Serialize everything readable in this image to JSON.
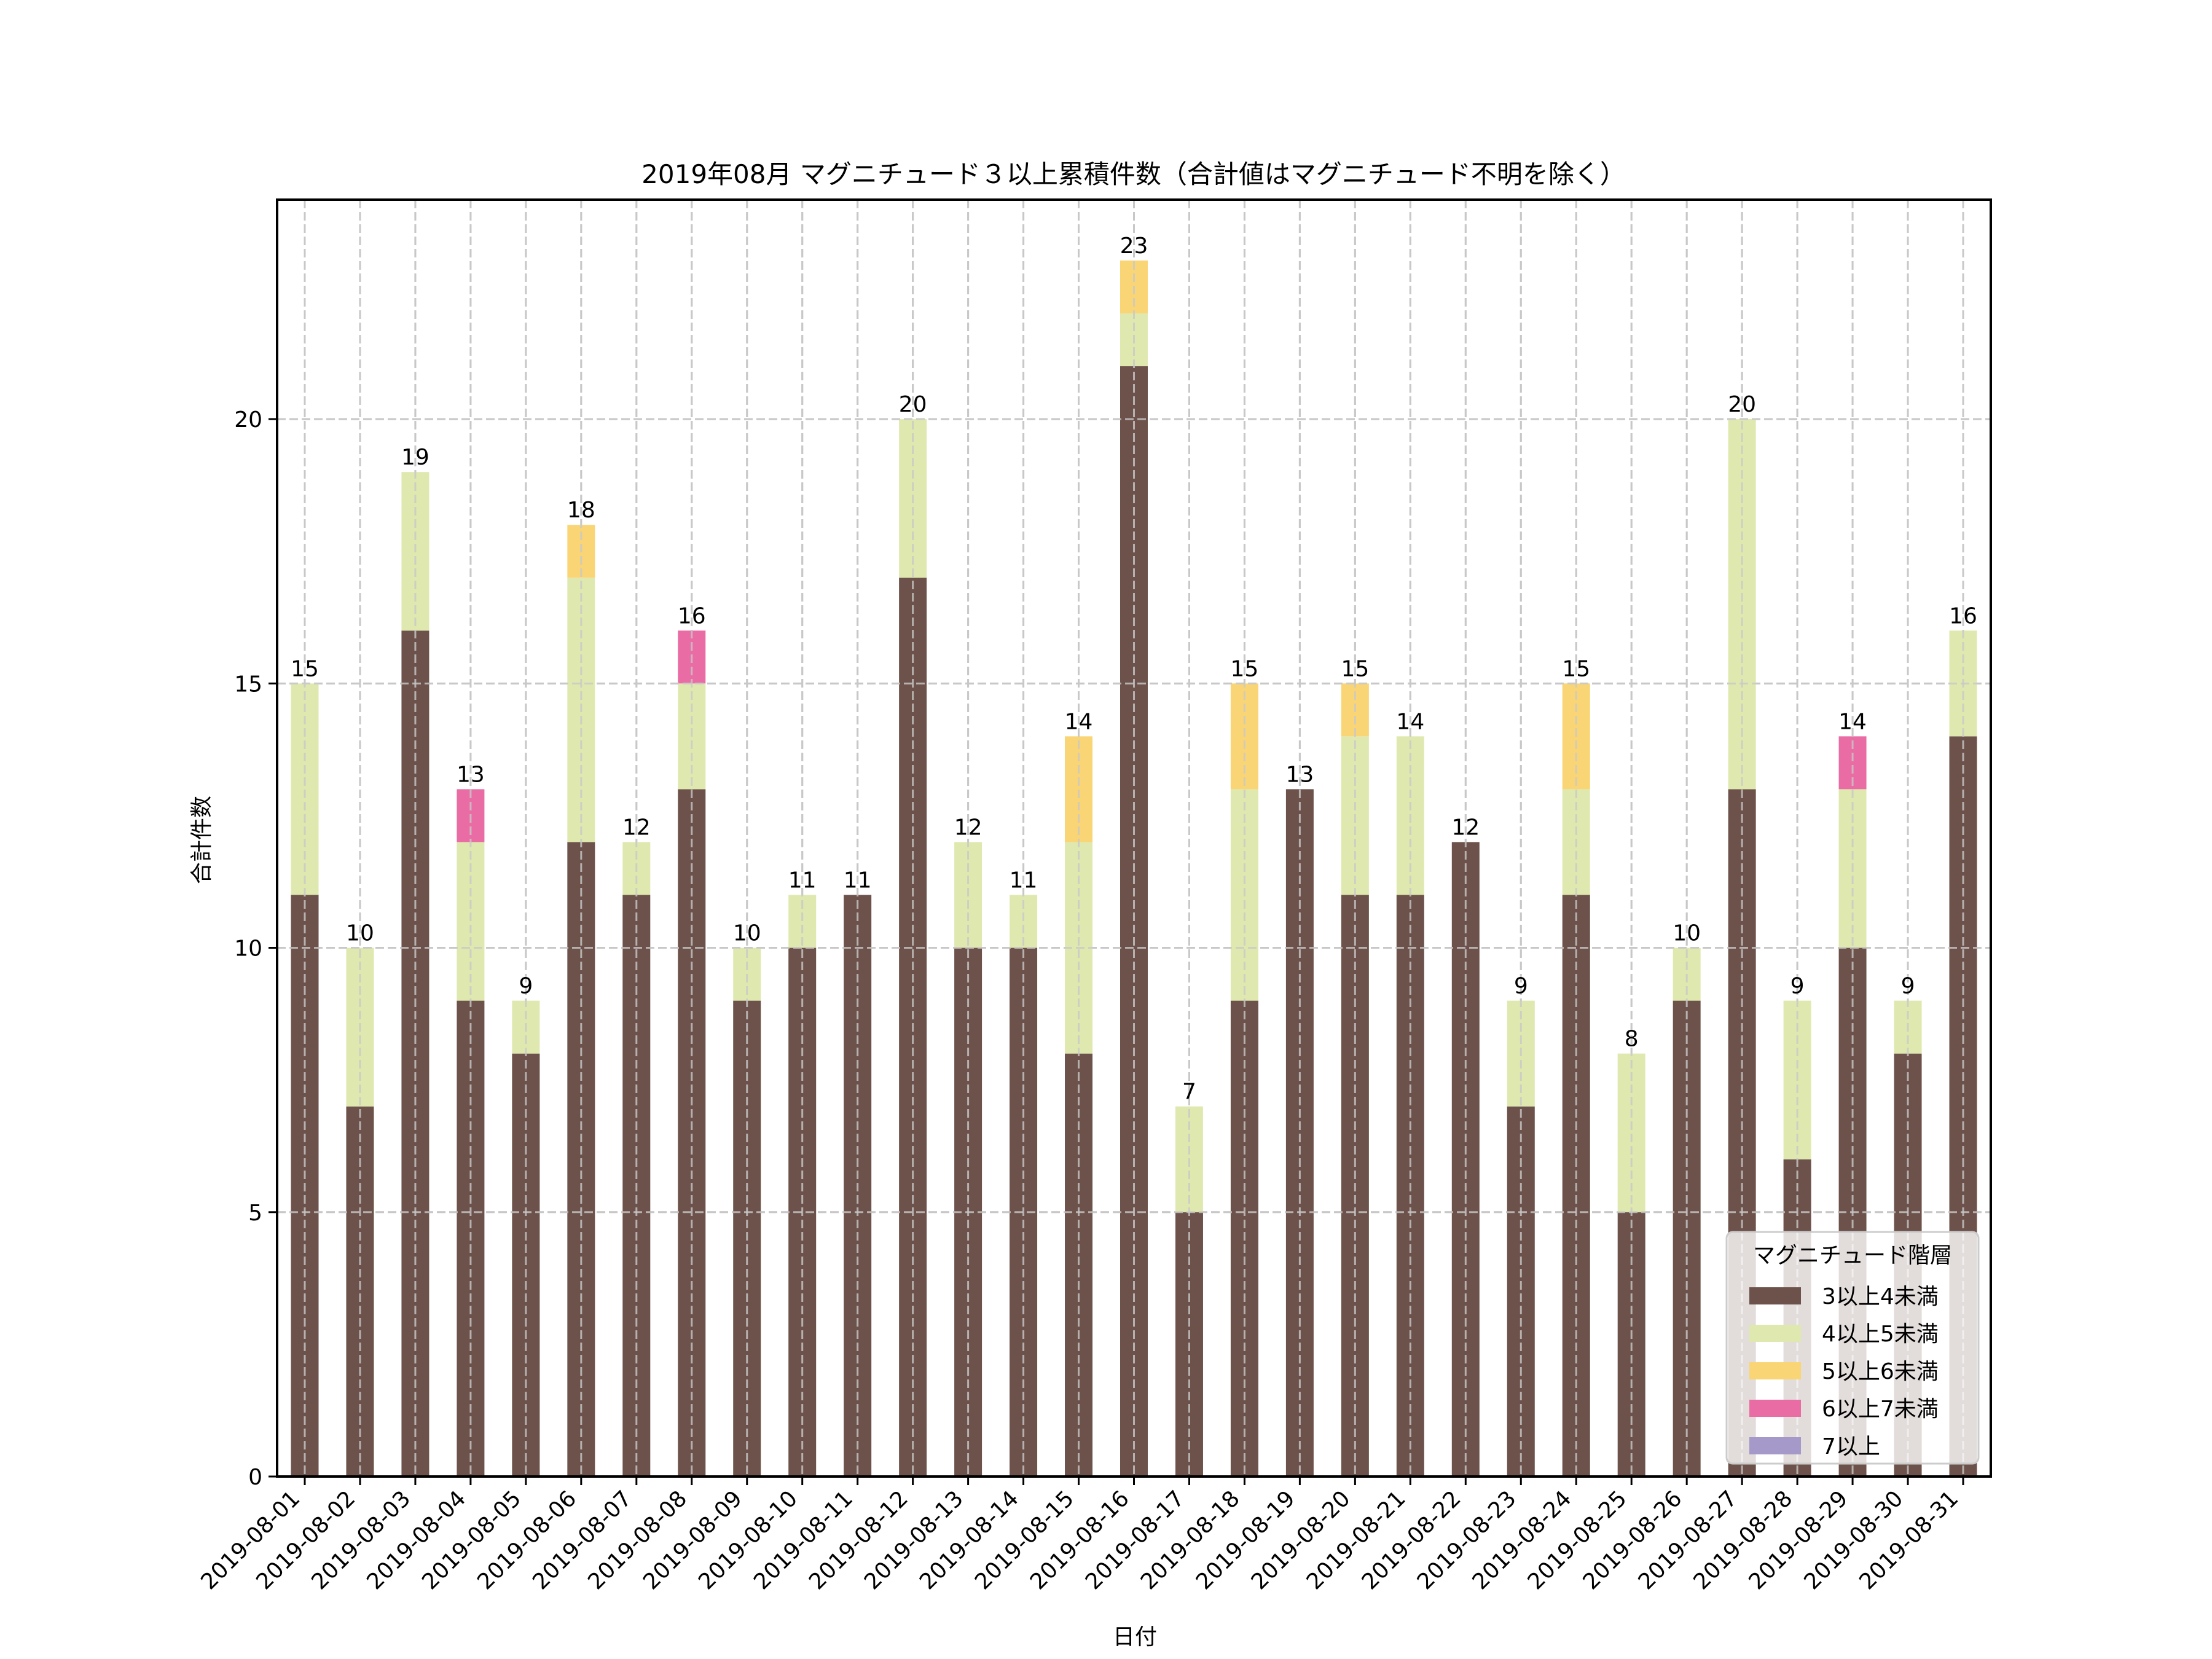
{
  "chart_data": {
    "type": "bar",
    "stacked": true,
    "title": "2019年08月 マグニチュード３以上累積件数（合計値はマグニチュード不明を除く）",
    "xlabel": "日付",
    "ylabel": "合計件数",
    "ylim": [
      0,
      24.15
    ],
    "yticks": [
      0,
      5,
      10,
      15,
      20
    ],
    "grid": true,
    "legend": {
      "title": "マグニチュード階層",
      "placement": "lower-right"
    },
    "categories": [
      "2019-08-01",
      "2019-08-02",
      "2019-08-03",
      "2019-08-04",
      "2019-08-05",
      "2019-08-06",
      "2019-08-07",
      "2019-08-08",
      "2019-08-09",
      "2019-08-10",
      "2019-08-11",
      "2019-08-12",
      "2019-08-13",
      "2019-08-14",
      "2019-08-15",
      "2019-08-16",
      "2019-08-17",
      "2019-08-18",
      "2019-08-19",
      "2019-08-20",
      "2019-08-21",
      "2019-08-22",
      "2019-08-23",
      "2019-08-24",
      "2019-08-25",
      "2019-08-26",
      "2019-08-27",
      "2019-08-28",
      "2019-08-29",
      "2019-08-30",
      "2019-08-31"
    ],
    "series": [
      {
        "name": "3以上4未満",
        "color": "#6d524b",
        "values": [
          11,
          7,
          16,
          9,
          8,
          12,
          11,
          13,
          9,
          10,
          11,
          17,
          10,
          10,
          8,
          21,
          5,
          9,
          13,
          11,
          11,
          12,
          7,
          11,
          5,
          9,
          13,
          6,
          10,
          8,
          14
        ]
      },
      {
        "name": "4以上5未満",
        "color": "#dfe9af",
        "values": [
          4,
          3,
          3,
          3,
          1,
          5,
          1,
          2,
          1,
          1,
          0,
          3,
          2,
          1,
          4,
          1,
          2,
          4,
          0,
          3,
          3,
          0,
          2,
          2,
          3,
          1,
          7,
          3,
          3,
          1,
          2
        ]
      },
      {
        "name": "5以上6未満",
        "color": "#fad575",
        "values": [
          0,
          0,
          0,
          0,
          0,
          1,
          0,
          0,
          0,
          0,
          0,
          0,
          0,
          0,
          2,
          1,
          0,
          2,
          0,
          1,
          0,
          0,
          0,
          2,
          0,
          0,
          0,
          0,
          0,
          0,
          0
        ]
      },
      {
        "name": "6以上7未満",
        "color": "#ea6ca4",
        "values": [
          0,
          0,
          0,
          1,
          0,
          0,
          0,
          1,
          0,
          0,
          0,
          0,
          0,
          0,
          0,
          0,
          0,
          0,
          0,
          0,
          0,
          0,
          0,
          0,
          0,
          0,
          0,
          0,
          1,
          0,
          0
        ]
      },
      {
        "name": "7以上",
        "color": "#a499c9",
        "values": [
          0,
          0,
          0,
          0,
          0,
          0,
          0,
          0,
          0,
          0,
          0,
          0,
          0,
          0,
          0,
          0,
          0,
          0,
          0,
          0,
          0,
          0,
          0,
          0,
          0,
          0,
          0,
          0,
          0,
          0,
          0
        ]
      }
    ],
    "totals": [
      15,
      10,
      19,
      13,
      9,
      18,
      12,
      16,
      10,
      11,
      11,
      20,
      12,
      11,
      14,
      23,
      7,
      15,
      13,
      15,
      14,
      12,
      9,
      15,
      8,
      10,
      20,
      9,
      14,
      9,
      16
    ]
  }
}
